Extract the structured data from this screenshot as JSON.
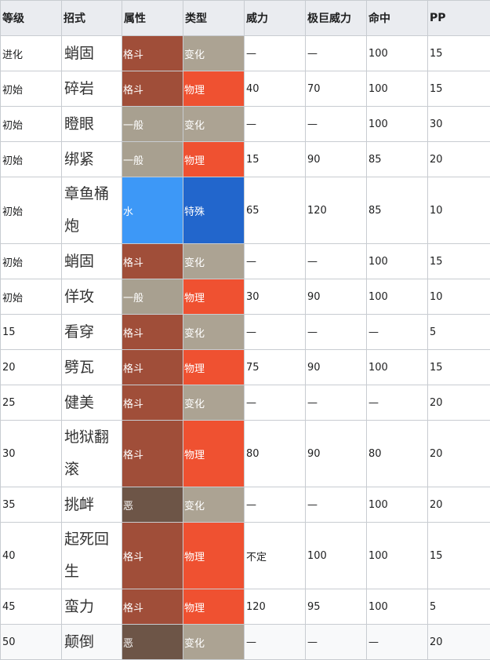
{
  "colors": {
    "格斗": "#a04e39",
    "一般": "#a8a090",
    "水": "#3d98f7",
    "恶": "#6d5547",
    "变化": "#aca393",
    "物理": "#ef5131",
    "特殊": "#2266cc"
  },
  "headers": [
    "等级",
    "招式",
    "属性",
    "类型",
    "威力",
    "极巨威力",
    "命中",
    "PP"
  ],
  "rows": [
    {
      "level": "进化",
      "move": "蛸固",
      "attr": "格斗",
      "kind": "变化",
      "power": "—",
      "max_power": "—",
      "accuracy": "100",
      "pp": "15"
    },
    {
      "level": "初始",
      "move": "碎岩",
      "attr": "格斗",
      "kind": "物理",
      "power": "40",
      "max_power": "70",
      "accuracy": "100",
      "pp": "15"
    },
    {
      "level": "初始",
      "move": "瞪眼",
      "attr": "一般",
      "kind": "变化",
      "power": "—",
      "max_power": "—",
      "accuracy": "100",
      "pp": "30"
    },
    {
      "level": "初始",
      "move": "绑紧",
      "attr": "一般",
      "kind": "物理",
      "power": "15",
      "max_power": "90",
      "accuracy": "85",
      "pp": "20"
    },
    {
      "level": "初始",
      "move": "章鱼桶炮",
      "attr": "水",
      "kind": "特殊",
      "power": "65",
      "max_power": "120",
      "accuracy": "85",
      "pp": "10"
    },
    {
      "level": "初始",
      "move": "蛸固",
      "attr": "格斗",
      "kind": "变化",
      "power": "—",
      "max_power": "—",
      "accuracy": "100",
      "pp": "15"
    },
    {
      "level": "初始",
      "move": "佯攻",
      "attr": "一般",
      "kind": "物理",
      "power": "30",
      "max_power": "90",
      "accuracy": "100",
      "pp": "10"
    },
    {
      "level": "15",
      "move": "看穿",
      "attr": "格斗",
      "kind": "变化",
      "power": "—",
      "max_power": "—",
      "accuracy": "—",
      "pp": "5"
    },
    {
      "level": "20",
      "move": "劈瓦",
      "attr": "格斗",
      "kind": "物理",
      "power": "75",
      "max_power": "90",
      "accuracy": "100",
      "pp": "15"
    },
    {
      "level": "25",
      "move": "健美",
      "attr": "格斗",
      "kind": "变化",
      "power": "—",
      "max_power": "—",
      "accuracy": "—",
      "pp": "20"
    },
    {
      "level": "30",
      "move": "地狱翻滚",
      "attr": "格斗",
      "kind": "物理",
      "power": "80",
      "max_power": "90",
      "accuracy": "80",
      "pp": "20"
    },
    {
      "level": "35",
      "move": "挑衅",
      "attr": "恶",
      "kind": "变化",
      "power": "—",
      "max_power": "—",
      "accuracy": "100",
      "pp": "20"
    },
    {
      "level": "40",
      "move": "起死回生",
      "attr": "格斗",
      "kind": "物理",
      "power": "不定",
      "max_power": "100",
      "accuracy": "100",
      "pp": "15"
    },
    {
      "level": "45",
      "move": "蛮力",
      "attr": "格斗",
      "kind": "物理",
      "power": "120",
      "max_power": "95",
      "accuracy": "100",
      "pp": "5"
    },
    {
      "level": "50",
      "move": "颠倒",
      "attr": "恶",
      "kind": "变化",
      "power": "—",
      "max_power": "—",
      "accuracy": "—",
      "pp": "20"
    }
  ]
}
